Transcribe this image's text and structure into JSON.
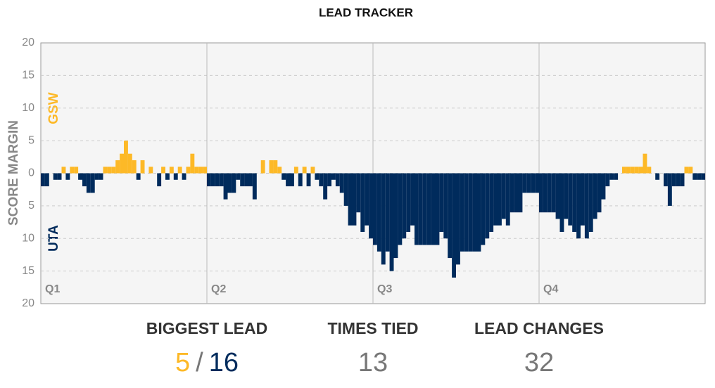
{
  "chart_data": {
    "type": "bar",
    "title": "LEAD TRACKER",
    "y_label": "SCORE MARGIN",
    "positive_label": "GSW",
    "negative_label": "UTA",
    "positive_color": "#fdb927",
    "negative_color": "#002b5c",
    "xlim": [
      0,
      48
    ],
    "xticks": [
      {
        "value": 0,
        "label": "Q1"
      },
      {
        "value": 12,
        "label": "Q2"
      },
      {
        "value": 24,
        "label": "Q3"
      },
      {
        "value": 36,
        "label": "Q4"
      }
    ],
    "ylim": [
      -20,
      20
    ],
    "yticks": [
      {
        "value": -20,
        "label": "20"
      },
      {
        "value": -15,
        "label": "15"
      },
      {
        "value": -10,
        "label": "10"
      },
      {
        "value": -5,
        "label": "5"
      },
      0,
      5,
      10,
      15,
      20
    ],
    "grid": true,
    "x": [
      0,
      0.3,
      0.6,
      0.9,
      1.2,
      1.5,
      1.8,
      2.1,
      2.4,
      2.7,
      3,
      3.3,
      3.6,
      3.9,
      4.2,
      4.5,
      4.8,
      5.1,
      5.4,
      5.7,
      6,
      6.3,
      6.6,
      6.9,
      7.2,
      7.5,
      7.8,
      8.1,
      8.4,
      8.7,
      9,
      9.3,
      9.6,
      9.9,
      10.2,
      10.5,
      10.8,
      11.1,
      11.4,
      11.7,
      12,
      12.3,
      12.6,
      12.9,
      13.2,
      13.5,
      13.8,
      14.1,
      14.4,
      14.7,
      15,
      15.3,
      15.6,
      15.9,
      16.2,
      16.5,
      16.8,
      17.1,
      17.4,
      17.7,
      18,
      18.3,
      18.6,
      18.9,
      19.2,
      19.5,
      19.8,
      20.1,
      20.4,
      20.7,
      21,
      21.3,
      21.6,
      21.9,
      22.2,
      22.5,
      22.8,
      23.1,
      23.4,
      23.7,
      24,
      24.3,
      24.6,
      24.9,
      25.2,
      25.5,
      25.8,
      26.1,
      26.4,
      26.7,
      27,
      27.3,
      27.6,
      27.9,
      28.2,
      28.5,
      28.8,
      29.1,
      29.4,
      29.7,
      30,
      30.3,
      30.6,
      30.9,
      31.2,
      31.5,
      31.8,
      32.1,
      32.4,
      32.7,
      33,
      33.3,
      33.6,
      33.9,
      34.2,
      34.5,
      34.8,
      35.1,
      35.4,
      35.7,
      36,
      36.3,
      36.6,
      36.9,
      37.2,
      37.5,
      37.8,
      38.1,
      38.4,
      38.7,
      39,
      39.3,
      39.6,
      39.9,
      40.2,
      40.5,
      40.8,
      41.1,
      41.4,
      41.7,
      42,
      42.3,
      42.6,
      42.9,
      43.2,
      43.5,
      43.8,
      44.1,
      44.4,
      44.7,
      45,
      45.3,
      45.6,
      45.9,
      46.2,
      46.5,
      46.8,
      47.1,
      47.4,
      47.7
    ],
    "values": [
      -2,
      -2,
      0,
      -1,
      -1,
      1,
      -1,
      1,
      1,
      -1,
      -2,
      -3,
      -3,
      -1,
      -1,
      1,
      1,
      1,
      2,
      3,
      5,
      3,
      2,
      -1,
      2,
      0,
      1,
      0,
      -2,
      1,
      -1,
      1,
      -1,
      1,
      -1,
      1,
      3,
      1,
      1,
      1,
      -2,
      -2,
      -2,
      -2,
      -4,
      -3,
      -3,
      -1,
      -2,
      -2,
      -2,
      -4,
      0,
      2,
      0,
      2,
      2,
      1,
      -1,
      -2,
      -2,
      1,
      -2,
      1,
      -2,
      1,
      -1,
      -2,
      -4,
      -2,
      -1,
      -2,
      -3,
      -5,
      -8,
      -8,
      -6,
      -9,
      -8,
      -10,
      -11,
      -12,
      -14,
      -12,
      -15,
      -13,
      -11,
      -10,
      -9,
      -8,
      -11,
      -11,
      -11,
      -11,
      -11,
      -11,
      -9,
      -10,
      -13,
      -16,
      -14,
      -12,
      -12,
      -12,
      -12,
      -12,
      -11,
      -10,
      -9,
      -8,
      -8,
      -7,
      -8,
      -6,
      -6,
      -6,
      -3,
      -3,
      -3,
      -3,
      -6,
      -6,
      -6,
      -6,
      -7,
      -9,
      -7,
      -8,
      -9,
      -10,
      -8,
      -10,
      -9,
      -7,
      -6,
      -4,
      -2,
      -1,
      -1,
      0,
      1,
      1,
      1,
      1,
      1,
      3,
      1,
      0,
      -1,
      0,
      -2,
      -5,
      -2,
      -2,
      -2,
      1,
      1,
      -1,
      -1,
      -1
    ]
  },
  "stats": [
    {
      "label": "BIGGEST LEAD",
      "values": [
        5,
        16
      ],
      "separator": "/"
    },
    {
      "label": "TIMES TIED",
      "values": [
        13
      ]
    },
    {
      "label": "LEAD CHANGES",
      "values": [
        32
      ]
    }
  ]
}
